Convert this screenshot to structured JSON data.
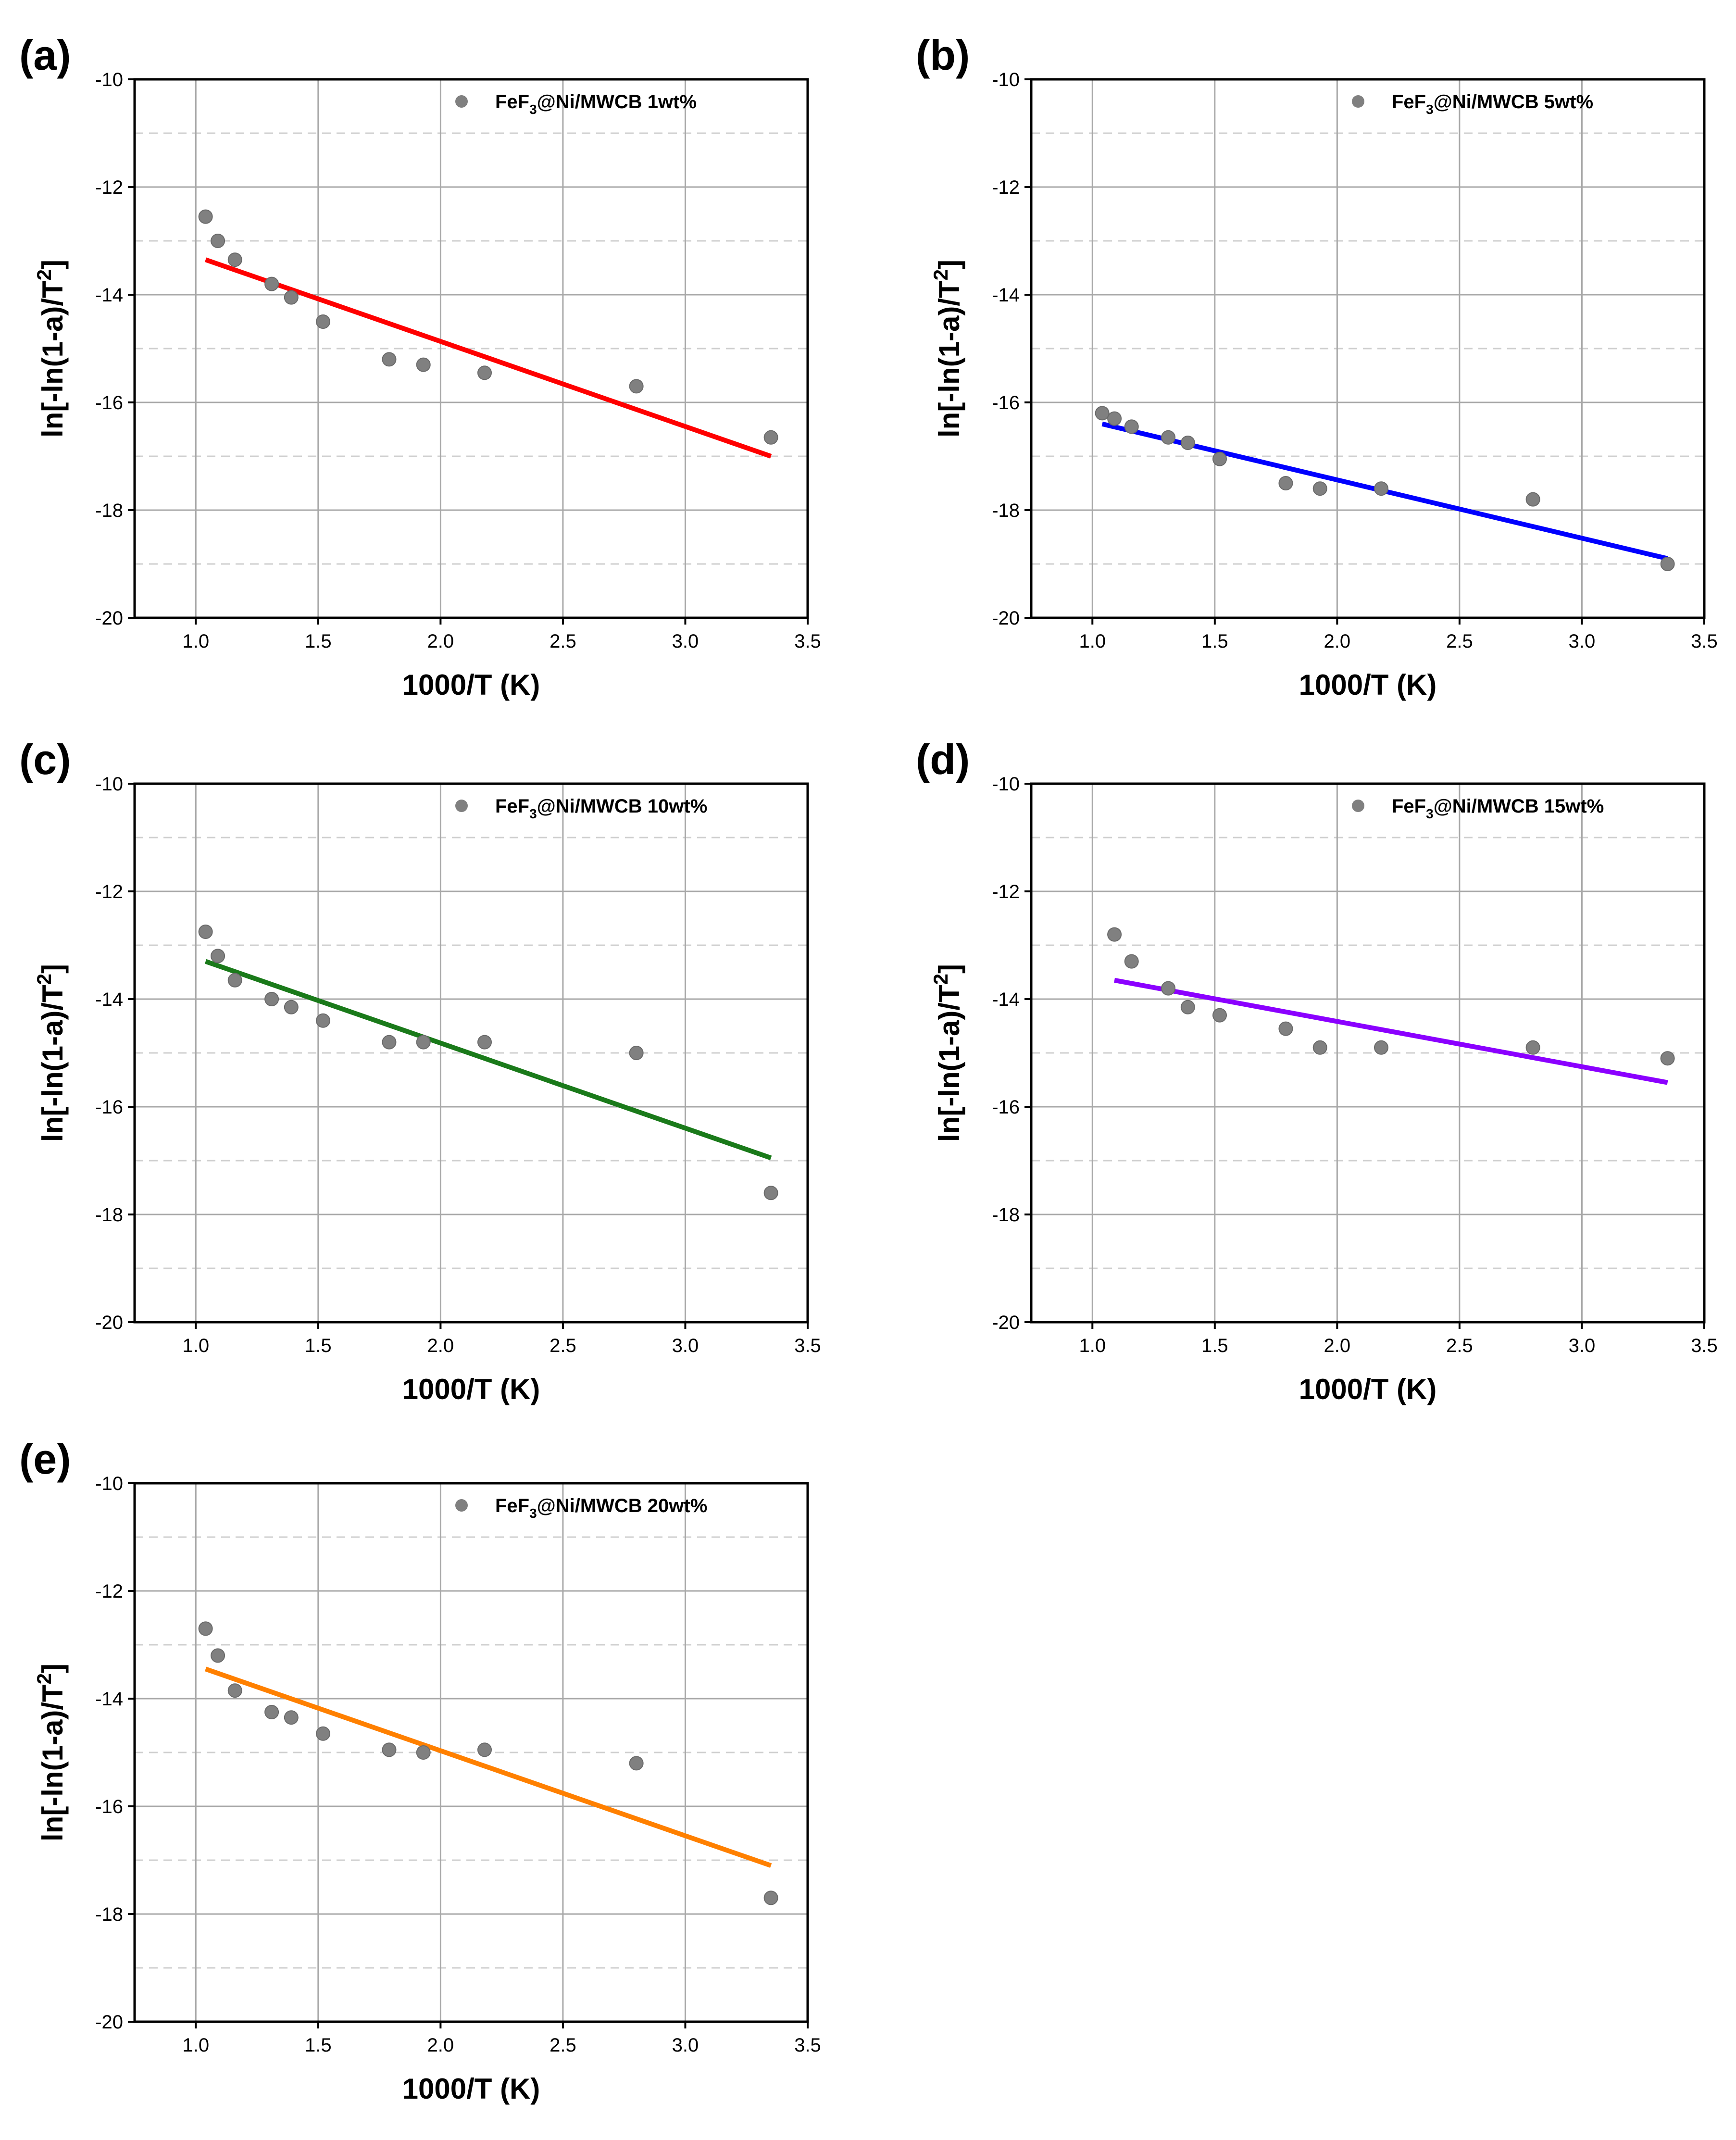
{
  "figure_title": "",
  "chart_data": [
    {
      "type": "scatter",
      "panel": "(a)",
      "legend": {
        "prefix": "FeF",
        "sub": "3",
        "suffix": "@Ni/MWCB 1wt%"
      },
      "xlabel": "1000/T (K)",
      "ylabel": {
        "main": "ln[-ln(1-a)/T",
        "sup": "2",
        "end": "]"
      },
      "xlim": [
        0.75,
        3.5
      ],
      "ylim": [
        -20,
        -10
      ],
      "xticks": [
        "1.0",
        "1.5",
        "2.0",
        "2.5",
        "3.0",
        "3.5"
      ],
      "yticks": [
        "-20",
        "-18",
        "-16",
        "-14",
        "-12",
        "-10"
      ],
      "points": {
        "x": [
          1.04,
          1.09,
          1.16,
          1.31,
          1.39,
          1.52,
          1.79,
          1.93,
          2.18,
          2.8,
          3.35
        ],
        "y": [
          -12.55,
          -13.0,
          -13.35,
          -13.8,
          -14.05,
          -14.5,
          -15.2,
          -15.3,
          -15.45,
          -15.7,
          -16.65
        ]
      },
      "fit": {
        "x": [
          1.04,
          3.35
        ],
        "y": [
          -13.35,
          -17.0
        ],
        "color": "#ff0000"
      },
      "marker_color": "#808080"
    },
    {
      "type": "scatter",
      "panel": "(b)",
      "legend": {
        "prefix": "FeF",
        "sub": "3",
        "suffix": "@Ni/MWCB 5wt%"
      },
      "xlabel": "1000/T (K)",
      "ylabel": {
        "main": "ln[-ln(1-a)/T",
        "sup": "2",
        "end": "]"
      },
      "xlim": [
        0.75,
        3.5
      ],
      "ylim": [
        -20,
        -10
      ],
      "xticks": [
        "1.0",
        "1.5",
        "2.0",
        "2.5",
        "3.0",
        "3.5"
      ],
      "yticks": [
        "-20",
        "-18",
        "-16",
        "-14",
        "-12",
        "-10"
      ],
      "points": {
        "x": [
          1.04,
          1.09,
          1.16,
          1.31,
          1.39,
          1.52,
          1.79,
          1.93,
          2.18,
          2.8,
          3.35
        ],
        "y": [
          -16.2,
          -16.3,
          -16.45,
          -16.65,
          -16.75,
          -17.05,
          -17.5,
          -17.6,
          -17.6,
          -17.8,
          -19.0
        ]
      },
      "fit": {
        "x": [
          1.04,
          3.35
        ],
        "y": [
          -16.4,
          -18.9
        ],
        "color": "#0000ff"
      },
      "marker_color": "#808080"
    },
    {
      "type": "scatter",
      "panel": "(c)",
      "legend": {
        "prefix": "FeF",
        "sub": "3",
        "suffix": "@Ni/MWCB 10wt%"
      },
      "xlabel": "1000/T (K)",
      "ylabel": {
        "main": "ln[-ln(1-a)/T",
        "sup": "2",
        "end": "]"
      },
      "xlim": [
        0.75,
        3.5
      ],
      "ylim": [
        -20,
        -10
      ],
      "xticks": [
        "1.0",
        "1.5",
        "2.0",
        "2.5",
        "3.0",
        "3.5"
      ],
      "yticks": [
        "-20",
        "-18",
        "-16",
        "-14",
        "-12",
        "-10"
      ],
      "points": {
        "x": [
          1.04,
          1.09,
          1.16,
          1.31,
          1.39,
          1.52,
          1.79,
          1.93,
          2.18,
          2.8,
          3.35
        ],
        "y": [
          -12.75,
          -13.2,
          -13.65,
          -14.0,
          -14.15,
          -14.4,
          -14.8,
          -14.8,
          -14.8,
          -15.0,
          -17.6
        ]
      },
      "fit": {
        "x": [
          1.04,
          3.35
        ],
        "y": [
          -13.3,
          -16.95
        ],
        "color": "#1a7a1a"
      },
      "marker_color": "#808080"
    },
    {
      "type": "scatter",
      "panel": "(d)",
      "legend": {
        "prefix": "FeF",
        "sub": "3",
        "suffix": "@Ni/MWCB 15wt%"
      },
      "xlabel": "1000/T (K)",
      "ylabel": {
        "main": "ln[-ln(1-a)/T",
        "sup": "2",
        "end": "]"
      },
      "xlim": [
        0.75,
        3.5
      ],
      "ylim": [
        -20,
        -10
      ],
      "xticks": [
        "1.0",
        "1.5",
        "2.0",
        "2.5",
        "3.0",
        "3.5"
      ],
      "yticks": [
        "-20",
        "-18",
        "-16",
        "-14",
        "-12",
        "-10"
      ],
      "points": {
        "x": [
          1.09,
          1.16,
          1.31,
          1.39,
          1.52,
          1.79,
          1.93,
          2.18,
          2.8,
          3.35
        ],
        "y": [
          -12.8,
          -13.3,
          -13.8,
          -14.15,
          -14.3,
          -14.55,
          -14.9,
          -14.9,
          -14.9,
          -15.1
        ]
      },
      "fit": {
        "x": [
          1.09,
          3.35
        ],
        "y": [
          -13.65,
          -15.55
        ],
        "color": "#8b00ff"
      },
      "marker_color": "#808080"
    },
    {
      "type": "scatter",
      "panel": "(e)",
      "legend": {
        "prefix": "FeF",
        "sub": "3",
        "suffix": "@Ni/MWCB 20wt%"
      },
      "xlabel": "1000/T (K)",
      "ylabel": {
        "main": "ln[-ln(1-a)/T",
        "sup": "2",
        "end": "]"
      },
      "xlim": [
        0.75,
        3.5
      ],
      "ylim": [
        -20,
        -10
      ],
      "xticks": [
        "1.0",
        "1.5",
        "2.0",
        "2.5",
        "3.0",
        "3.5"
      ],
      "yticks": [
        "-20",
        "-18",
        "-16",
        "-14",
        "-12",
        "-10"
      ],
      "points": {
        "x": [
          1.04,
          1.09,
          1.16,
          1.31,
          1.39,
          1.52,
          1.79,
          1.93,
          2.18,
          2.8,
          3.35
        ],
        "y": [
          -12.7,
          -13.2,
          -13.85,
          -14.25,
          -14.35,
          -14.65,
          -14.95,
          -15.0,
          -14.95,
          -15.2,
          -17.7
        ]
      },
      "fit": {
        "x": [
          1.04,
          3.35
        ],
        "y": [
          -13.45,
          -17.1
        ],
        "color": "#ff8000"
      },
      "marker_color": "#808080"
    }
  ]
}
